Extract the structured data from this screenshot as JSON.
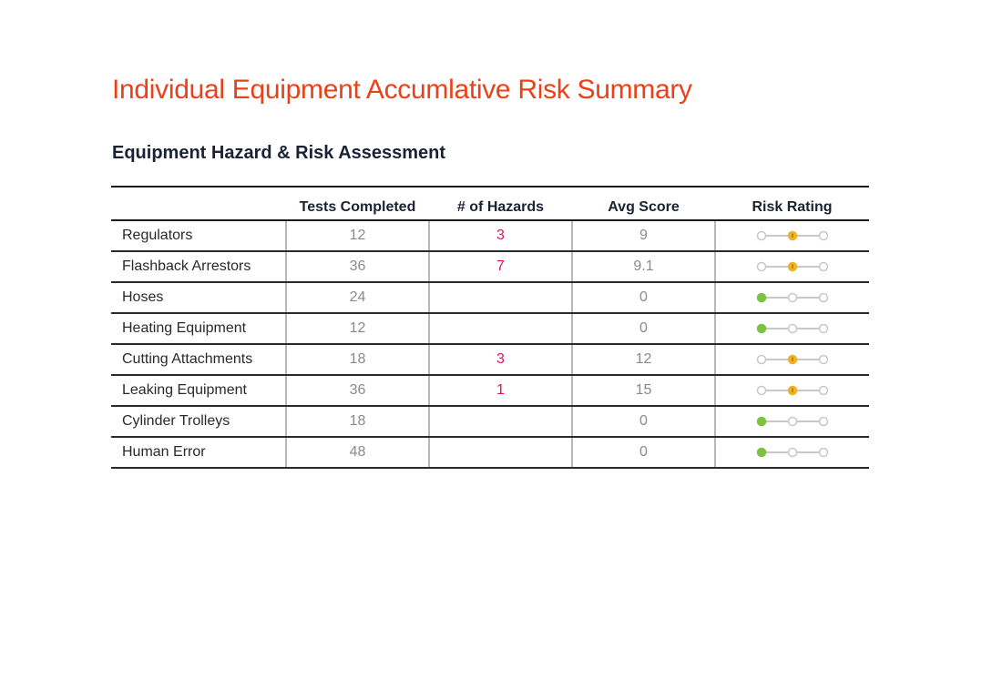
{
  "page": {
    "title": "Individual Equipment Accumlative Risk Summary",
    "section_title": "Equipment Hazard & Risk Assessment"
  },
  "table": {
    "headers": [
      "",
      "Tests Completed",
      "# of Hazards",
      "Avg Score",
      "Risk Rating"
    ],
    "rows": [
      {
        "name": "Regulators",
        "tests": "12",
        "hazards": "3",
        "avg": "9",
        "rating": "medium"
      },
      {
        "name": "Flashback Arrestors",
        "tests": "36",
        "hazards": "7",
        "avg": "9.1",
        "rating": "medium"
      },
      {
        "name": "Hoses",
        "tests": "24",
        "hazards": "",
        "avg": "0",
        "rating": "low"
      },
      {
        "name": "Heating Equipment",
        "tests": "12",
        "hazards": "",
        "avg": "0",
        "rating": "low"
      },
      {
        "name": "Cutting Attachments",
        "tests": "18",
        "hazards": "3",
        "avg": "12",
        "rating": "medium"
      },
      {
        "name": "Leaking Equipment",
        "tests": "36",
        "hazards": "1",
        "avg": "15",
        "rating": "medium"
      },
      {
        "name": "Cylinder Trolleys",
        "tests": "18",
        "hazards": "",
        "avg": "0",
        "rating": "low"
      },
      {
        "name": "Human Error",
        "tests": "48",
        "hazards": "",
        "avg": "0",
        "rating": "low"
      }
    ]
  },
  "colors": {
    "title": "#e8421b",
    "hazard_value": "#e0115f",
    "rating_low": "#7dc242",
    "rating_medium": "#f0b323",
    "rating_inactive": "#c8c8c8"
  },
  "icons": {
    "rating_low": "risk-rating-low-icon",
    "rating_medium": "risk-rating-medium-icon"
  }
}
